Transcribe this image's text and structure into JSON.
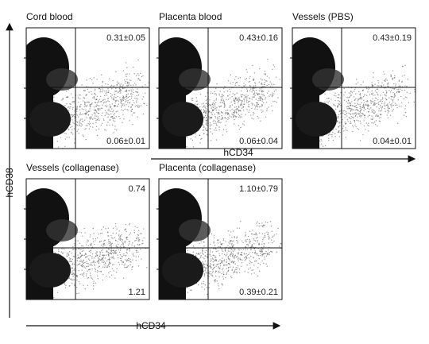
{
  "y_axis_label": "hCD38",
  "x_axis_labels": [
    "hCD34",
    "hCD34"
  ],
  "panels": [
    {
      "title": "Cord blood",
      "upper_right": "0.31±0.05",
      "lower_right": "0.06±0.01"
    },
    {
      "title": "Placenta blood",
      "upper_right": "0.43±0.16",
      "lower_right": "0.06±0.04"
    },
    {
      "title": "Vessels (PBS)",
      "upper_right": "0.43±0.19",
      "lower_right": "0.04±0.01"
    },
    {
      "title": "Vessels (collagenase)",
      "upper_right": "0.74",
      "lower_right": "1.21"
    },
    {
      "title": "Placenta (collagenase)",
      "upper_right": "1.10±0.79",
      "lower_right": "0.39±0.21"
    }
  ]
}
